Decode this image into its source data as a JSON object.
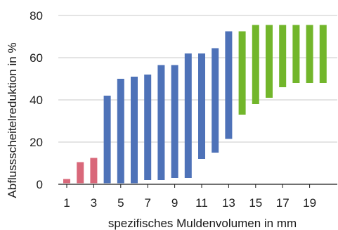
{
  "chart_data": {
    "type": "bar",
    "title": "",
    "xlabel": "spezifisches Muldenvolumen in mm",
    "ylabel": "Abflussscheitelreduktion in %",
    "ylim": [
      0,
      80
    ],
    "y_ticks": [
      0,
      20,
      40,
      60,
      80
    ],
    "x_tick_labels": [
      "1",
      "3",
      "5",
      "7",
      "9",
      "11",
      "13",
      "15",
      "17",
      "19"
    ],
    "grid": "horizontal",
    "categories": [
      1,
      2,
      3,
      4,
      5,
      6,
      7,
      8,
      9,
      10,
      11,
      12,
      13,
      14,
      15,
      16,
      17,
      18,
      19,
      20
    ],
    "ranges": [
      {
        "x": 1,
        "low": 0.5,
        "high": 2.5
      },
      {
        "x": 2,
        "low": 0.5,
        "high": 10.5
      },
      {
        "x": 3,
        "low": 0.5,
        "high": 12.5
      },
      {
        "x": 4,
        "low": 0.5,
        "high": 42
      },
      {
        "x": 5,
        "low": 0.5,
        "high": 50
      },
      {
        "x": 6,
        "low": 0.5,
        "high": 51
      },
      {
        "x": 7,
        "low": 2,
        "high": 52
      },
      {
        "x": 8,
        "low": 2,
        "high": 56.5
      },
      {
        "x": 9,
        "low": 3,
        "high": 56.5
      },
      {
        "x": 10,
        "low": 3,
        "high": 62
      },
      {
        "x": 11,
        "low": 12,
        "high": 62
      },
      {
        "x": 12,
        "low": 15,
        "high": 64.5
      },
      {
        "x": 13,
        "low": 21.5,
        "high": 72.5
      },
      {
        "x": 14,
        "low": 33,
        "high": 72.5
      },
      {
        "x": 15,
        "low": 38,
        "high": 75.5
      },
      {
        "x": 16,
        "low": 41,
        "high": 75.5
      },
      {
        "x": 17,
        "low": 46,
        "high": 75.5
      },
      {
        "x": 18,
        "low": 48,
        "high": 75.5
      },
      {
        "x": 19,
        "low": 48,
        "high": 75.5
      },
      {
        "x": 20,
        "low": 48,
        "high": 75.5
      }
    ],
    "colors": {
      "pink": "#d9687a",
      "blue": "#4e72b8",
      "green": "#72b62b",
      "grid": "#c9c9c9",
      "axis": "#1a1a1a"
    },
    "bar_color_groups": [
      {
        "from": 1,
        "to": 3,
        "color": "pink"
      },
      {
        "from": 4,
        "to": 13,
        "color": "blue"
      },
      {
        "from": 14,
        "to": 20,
        "color": "green"
      }
    ]
  }
}
